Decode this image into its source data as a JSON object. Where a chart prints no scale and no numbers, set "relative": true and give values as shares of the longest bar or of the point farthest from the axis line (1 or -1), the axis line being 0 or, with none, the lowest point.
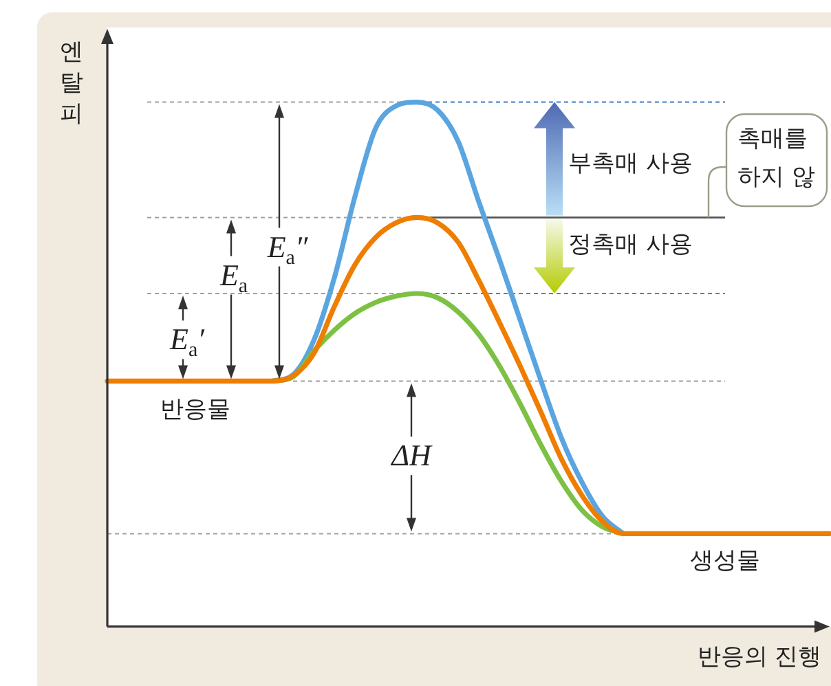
{
  "chart_data": {
    "type": "line",
    "relative": true,
    "xlabel": "반응의 진행",
    "ylabel": "엔탈피",
    "categories": [
      null,
      null,
      null,
      null,
      null,
      null,
      null,
      null,
      null,
      null,
      null,
      null,
      null,
      null,
      null,
      null,
      null,
      null,
      null,
      null,
      null,
      null,
      null,
      null,
      null,
      null,
      null,
      null,
      null,
      null,
      null,
      null,
      null,
      null,
      null,
      null
    ],
    "series": [
      {
        "color": "#5aa5e0",
        "values": [
          null,
          null,
          null,
          null,
          null,
          null,
          null,
          null,
          0.468,
          0.48,
          0.545,
          0.665,
          0.82,
          0.95,
          0.993,
          1,
          0.985,
          0.925,
          0.81,
          0.7,
          0.585,
          0.47,
          0.36,
          0.275,
          0.21,
          0.177,
          null,
          null,
          null,
          null,
          null,
          null,
          null,
          null,
          null,
          null
        ]
      },
      {
        "color": "#7cc143",
        "values": [
          null,
          null,
          null,
          null,
          null,
          null,
          null,
          null,
          0.468,
          0.476,
          0.525,
          0.565,
          0.597,
          0.618,
          0.63,
          0.635,
          0.627,
          0.6,
          0.557,
          0.497,
          0.425,
          0.347,
          0.277,
          0.222,
          0.19,
          0.177,
          null,
          null,
          null,
          null,
          null,
          null,
          null,
          null,
          null,
          null
        ]
      },
      {
        "color": "#ef7d00",
        "values": [
          0.468,
          0.468,
          0.468,
          0.468,
          0.468,
          0.468,
          0.468,
          0.468,
          0.468,
          0.478,
          0.52,
          0.61,
          0.69,
          0.742,
          0.77,
          0.78,
          0.77,
          0.733,
          0.66,
          0.58,
          0.497,
          0.41,
          0.32,
          0.25,
          0.2,
          0.177,
          0.177,
          0.177,
          0.177,
          0.177,
          0.177,
          0.177,
          0.177,
          0.177,
          0.177,
          0.177
        ]
      }
    ],
    "ref_lines": [
      {
        "axis": "y",
        "value": 1,
        "color": "#a0a0a0",
        "line_style": "dotted"
      },
      {
        "axis": "y",
        "value": 1,
        "color": "#3d7cc0",
        "line_style": "dotted"
      },
      {
        "axis": "y",
        "value": 0.78,
        "color": "#a0a0a0",
        "line_style": "dotted"
      },
      {
        "axis": "y",
        "value": 0.78,
        "color": "#555555",
        "line_style": "solid"
      },
      {
        "axis": "y",
        "value": 0.635,
        "color": "#a0a0a0",
        "line_style": "dotted"
      },
      {
        "axis": "y",
        "value": 0.635,
        "color": "#2fa65a",
        "line_style": "dotted"
      },
      {
        "axis": "y",
        "value": 0.468,
        "color": "#a0a0a0",
        "line_style": "dotted"
      },
      {
        "axis": "y",
        "value": 0.177,
        "color": "#a0a0a0",
        "line_style": "dotted"
      }
    ],
    "annotations": [
      "반응물",
      "생성물",
      "E$_{a}$″",
      "E$_{a}$",
      "E$_{a}$′",
      "ΔH",
      "부촉매 사용",
      "정촉매 사용",
      "촉매를 하지 않"
    ]
  }
}
